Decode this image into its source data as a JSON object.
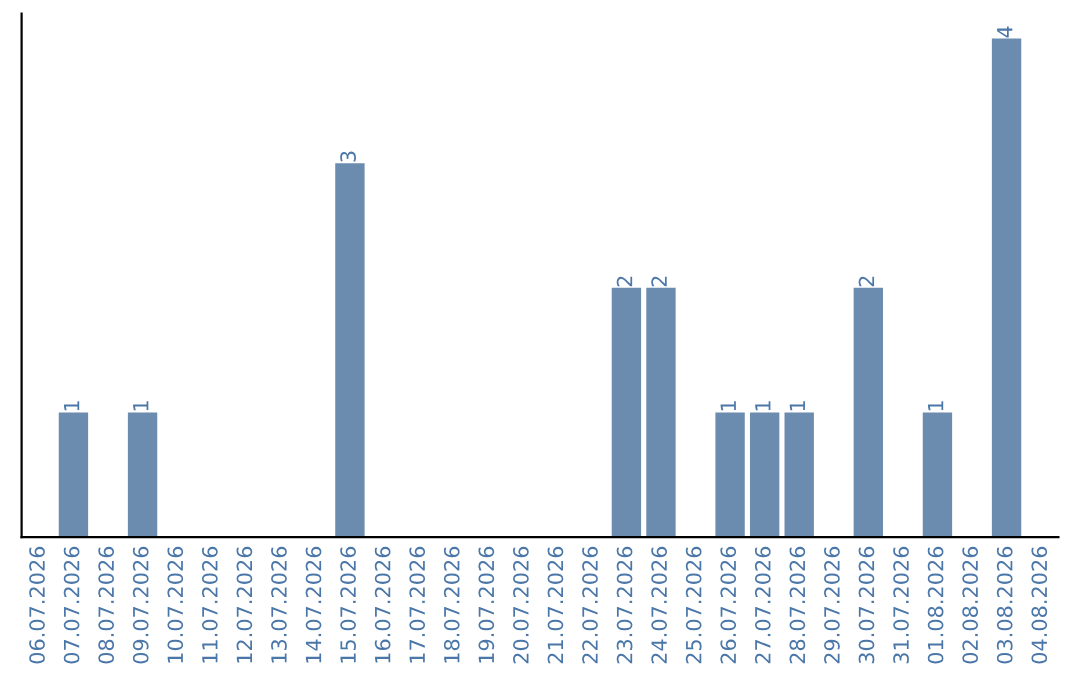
{
  "chart_data": {
    "type": "bar",
    "categories": [
      "06.07.2026",
      "07.07.2026",
      "08.07.2026",
      "09.07.2026",
      "10.07.2026",
      "11.07.2026",
      "12.07.2026",
      "13.07.2026",
      "14.07.2026",
      "15.07.2026",
      "16.07.2026",
      "17.07.2026",
      "18.07.2026",
      "19.07.2026",
      "20.07.2026",
      "21.07.2026",
      "22.07.2026",
      "23.07.2026",
      "24.07.2026",
      "25.07.2026",
      "26.07.2026",
      "27.07.2026",
      "28.07.2026",
      "29.07.2026",
      "30.07.2026",
      "31.07.2026",
      "01.08.2026",
      "02.08.2026",
      "03.08.2026",
      "04.08.2026"
    ],
    "values": [
      0,
      1,
      0,
      1,
      0,
      0,
      0,
      0,
      0,
      3,
      0,
      0,
      0,
      0,
      0,
      0,
      0,
      2,
      2,
      0,
      1,
      1,
      1,
      0,
      2,
      0,
      1,
      0,
      4,
      0
    ],
    "value_labels": [
      null,
      "1",
      null,
      "1",
      null,
      null,
      null,
      null,
      null,
      "3",
      null,
      null,
      null,
      null,
      null,
      null,
      null,
      "2",
      "2",
      null,
      "1",
      "1",
      "1",
      null,
      "2",
      null,
      "1",
      null,
      "4",
      null
    ],
    "color": "#6b8cae",
    "ylim": [
      0,
      4.2
    ],
    "tick_labels": "x",
    "grid": false,
    "legend": false
  }
}
